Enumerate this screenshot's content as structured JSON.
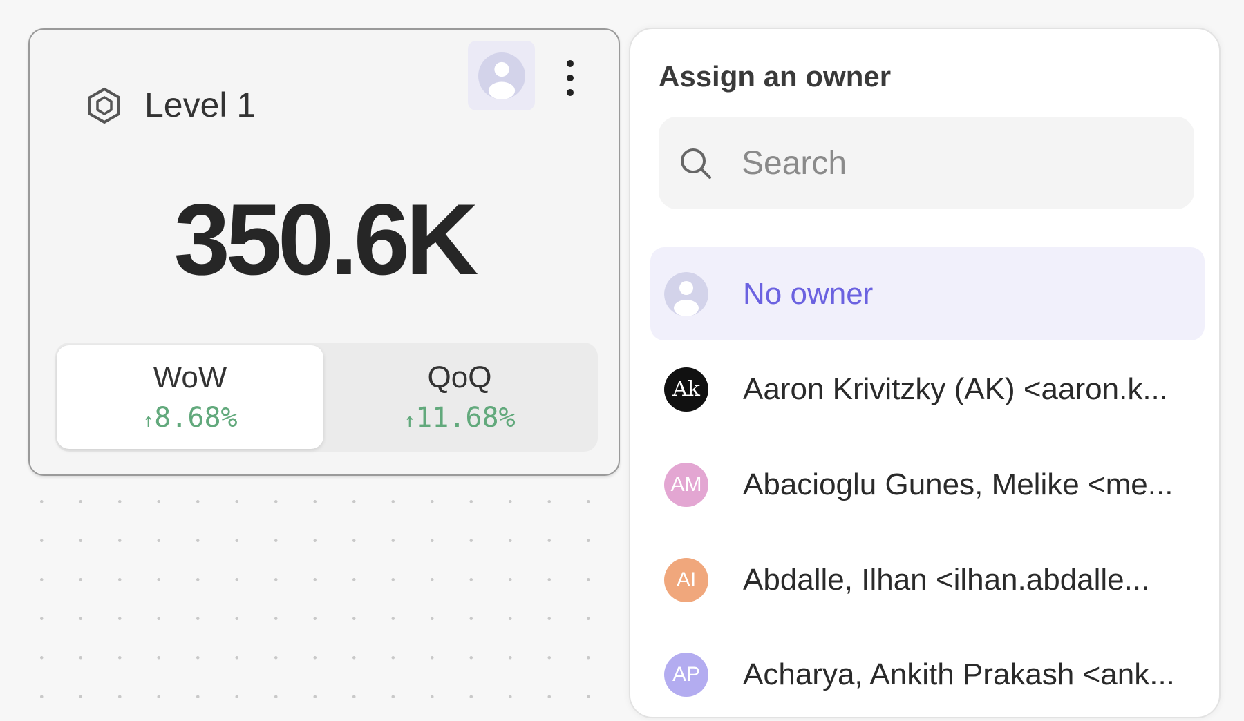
{
  "card": {
    "title": "Level 1",
    "icon": "hexagon-icon",
    "metric_value": "350.6K",
    "comparisons": [
      {
        "label": "WoW",
        "arrow": "↑",
        "value": "8.68%",
        "active": true
      },
      {
        "label": "QoQ",
        "arrow": "↑",
        "value": "11.68%",
        "active": false
      }
    ],
    "positive_color": "#62a97c"
  },
  "owner_panel": {
    "title": "Assign an owner",
    "search_placeholder": "Search",
    "search_value": "",
    "accent_color": "#6b62e0",
    "options": [
      {
        "label": "No owner",
        "avatar": "person-placeholder",
        "selected": true
      },
      {
        "label": "Aaron Krivitzky (AK) <aaron.k...",
        "avatar_text": "Ak",
        "avatar_color": "#111111"
      },
      {
        "label": "Abacioglu Gunes, Melike <me...",
        "avatar_text": "AM",
        "avatar_color": "#e3a6d2"
      },
      {
        "label": "Abdalle, Ilhan <ilhan.abdalle...",
        "avatar_text": "AI",
        "avatar_color": "#f0a77c"
      },
      {
        "label": "Acharya, Ankith Prakash <ank...",
        "avatar_text": "AP",
        "avatar_color": "#b3acf0"
      }
    ]
  }
}
